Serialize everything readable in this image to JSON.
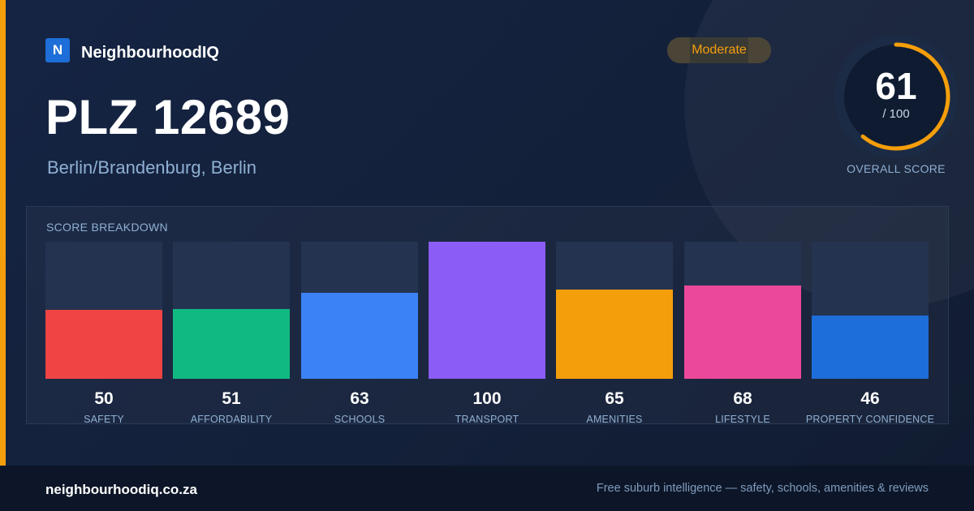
{
  "brand": {
    "logo_letter": "N",
    "name": "NeighbourhoodIQ",
    "logo_color": "#1d6ed8"
  },
  "header": {
    "title": "PLZ 12689",
    "subtitle": "Berlin/Brandenburg, Berlin",
    "badge": "Moderate"
  },
  "overall": {
    "score": "61",
    "max": "/ 100",
    "label": "OVERALL SCORE",
    "fraction": 0.61,
    "ring_color": "#f59e0b"
  },
  "panel": {
    "title": "SCORE BREAKDOWN"
  },
  "chart_data": {
    "type": "bar",
    "title": "SCORE BREAKDOWN",
    "ylim": [
      0,
      100
    ],
    "categories": [
      "SAFETY",
      "AFFORDABILITY",
      "SCHOOLS",
      "TRANSPORT",
      "AMENITIES",
      "LIFESTYLE",
      "PROPERTY CONFIDENCE"
    ],
    "values": [
      50,
      51,
      63,
      100,
      65,
      68,
      46
    ],
    "colors": [
      "#ef4444",
      "#10b981",
      "#3b82f6",
      "#8b5cf6",
      "#f59e0b",
      "#ec4899",
      "#1d6ed8"
    ]
  },
  "footer": {
    "domain": "neighbourhoodiq.co.za",
    "tagline": "Free suburb intelligence — safety, schools, amenities & reviews"
  }
}
